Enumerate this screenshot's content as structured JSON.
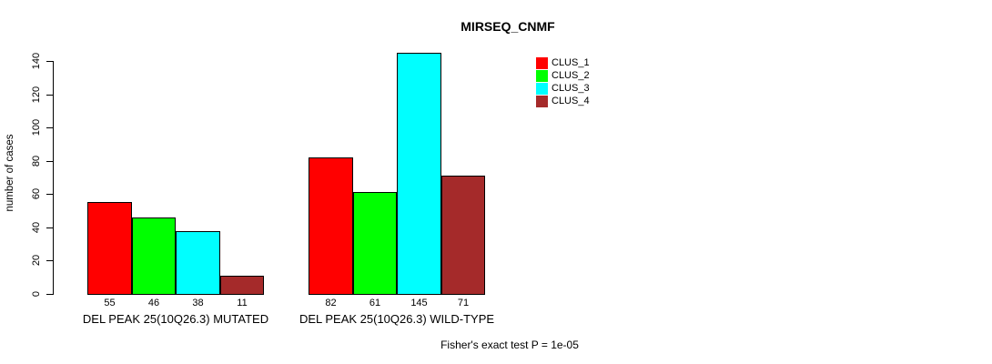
{
  "chart_data": {
    "type": "bar",
    "title": "MIRSEQ_CNMF",
    "ylabel": "number of cases",
    "ylim": [
      0,
      145
    ],
    "yticks": [
      0,
      20,
      40,
      60,
      80,
      100,
      120,
      140
    ],
    "grid": false,
    "legend_position": "top-right",
    "categories": [
      "DEL PEAK 25(10Q26.3) MUTATED",
      "DEL PEAK 25(10Q26.3) WILD-TYPE"
    ],
    "series": [
      {
        "name": "CLUS_1",
        "color": "#FF0000",
        "values": [
          55,
          82
        ]
      },
      {
        "name": "CLUS_2",
        "color": "#00FF00",
        "values": [
          46,
          61
        ]
      },
      {
        "name": "CLUS_3",
        "color": "#00FFFF",
        "values": [
          38,
          145
        ]
      },
      {
        "name": "CLUS_4",
        "color": "#A52A2A",
        "values": [
          11,
          71
        ]
      }
    ],
    "annotation": "Fisher's exact test P = 1e-05"
  }
}
